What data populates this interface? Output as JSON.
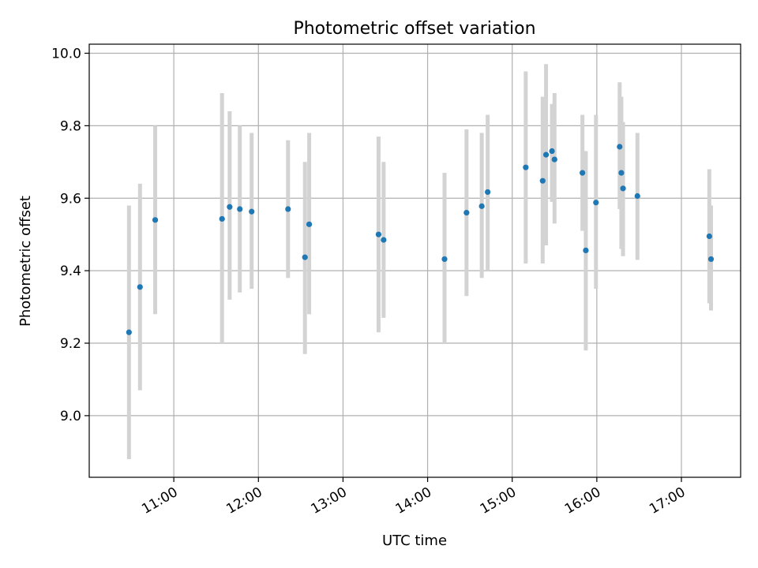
{
  "chart_data": {
    "type": "scatter",
    "title": "Photometric offset variation",
    "xlabel": "UTC time",
    "ylabel": "Photometric offset",
    "x_unit": "hours UTC",
    "xlim": [
      10.0,
      17.7
    ],
    "ylim": [
      8.83,
      10.025
    ],
    "x_ticks": [
      11,
      12,
      13,
      14,
      15,
      16,
      17
    ],
    "x_tick_labels": [
      "11:00",
      "12:00",
      "13:00",
      "14:00",
      "15:00",
      "16:00",
      "17:00"
    ],
    "y_ticks": [
      9.0,
      9.2,
      9.4,
      9.6,
      9.8,
      10.0
    ],
    "y_tick_labels": [
      "9.0",
      "9.2",
      "9.4",
      "9.6",
      "9.8",
      "10.0"
    ],
    "grid": true,
    "colors": {
      "point": "#1f77b4",
      "errorbar": "#d3d3d3",
      "grid": "#b0b0b0"
    },
    "points": [
      {
        "x": 10.47,
        "y": 9.23,
        "ylow": 8.88,
        "yhigh": 9.58
      },
      {
        "x": 10.6,
        "y": 9.355,
        "ylow": 9.07,
        "yhigh": 9.64
      },
      {
        "x": 10.78,
        "y": 9.54,
        "ylow": 9.28,
        "yhigh": 9.8
      },
      {
        "x": 11.57,
        "y": 9.543,
        "ylow": 9.2,
        "yhigh": 9.89
      },
      {
        "x": 11.66,
        "y": 9.576,
        "ylow": 9.32,
        "yhigh": 9.84
      },
      {
        "x": 11.78,
        "y": 9.57,
        "ylow": 9.34,
        "yhigh": 9.8
      },
      {
        "x": 11.92,
        "y": 9.563,
        "ylow": 9.35,
        "yhigh": 9.78
      },
      {
        "x": 12.35,
        "y": 9.57,
        "ylow": 9.38,
        "yhigh": 9.76
      },
      {
        "x": 12.55,
        "y": 9.437,
        "ylow": 9.17,
        "yhigh": 9.7
      },
      {
        "x": 12.6,
        "y": 9.528,
        "ylow": 9.28,
        "yhigh": 9.78
      },
      {
        "x": 13.42,
        "y": 9.5,
        "ylow": 9.23,
        "yhigh": 9.77
      },
      {
        "x": 13.48,
        "y": 9.485,
        "ylow": 9.27,
        "yhigh": 9.7
      },
      {
        "x": 14.2,
        "y": 9.432,
        "ylow": 9.2,
        "yhigh": 9.67
      },
      {
        "x": 14.46,
        "y": 9.56,
        "ylow": 9.33,
        "yhigh": 9.79
      },
      {
        "x": 14.64,
        "y": 9.578,
        "ylow": 9.38,
        "yhigh": 9.78
      },
      {
        "x": 14.71,
        "y": 9.617,
        "ylow": 9.4,
        "yhigh": 9.83
      },
      {
        "x": 15.16,
        "y": 9.685,
        "ylow": 9.42,
        "yhigh": 9.95
      },
      {
        "x": 15.36,
        "y": 9.648,
        "ylow": 9.42,
        "yhigh": 9.88
      },
      {
        "x": 15.4,
        "y": 9.72,
        "ylow": 9.47,
        "yhigh": 9.97
      },
      {
        "x": 15.47,
        "y": 9.73,
        "ylow": 9.59,
        "yhigh": 9.86
      },
      {
        "x": 15.5,
        "y": 9.707,
        "ylow": 9.53,
        "yhigh": 9.89
      },
      {
        "x": 15.83,
        "y": 9.67,
        "ylow": 9.51,
        "yhigh": 9.83
      },
      {
        "x": 15.87,
        "y": 9.456,
        "ylow": 9.18,
        "yhigh": 9.73
      },
      {
        "x": 15.99,
        "y": 9.588,
        "ylow": 9.35,
        "yhigh": 9.83
      },
      {
        "x": 16.27,
        "y": 9.742,
        "ylow": 9.57,
        "yhigh": 9.92
      },
      {
        "x": 16.29,
        "y": 9.67,
        "ylow": 9.46,
        "yhigh": 9.88
      },
      {
        "x": 16.31,
        "y": 9.627,
        "ylow": 9.44,
        "yhigh": 9.81
      },
      {
        "x": 16.48,
        "y": 9.606,
        "ylow": 9.43,
        "yhigh": 9.78
      },
      {
        "x": 17.33,
        "y": 9.495,
        "ylow": 9.31,
        "yhigh": 9.68
      },
      {
        "x": 17.35,
        "y": 9.432,
        "ylow": 9.29,
        "yhigh": 9.58
      }
    ]
  }
}
